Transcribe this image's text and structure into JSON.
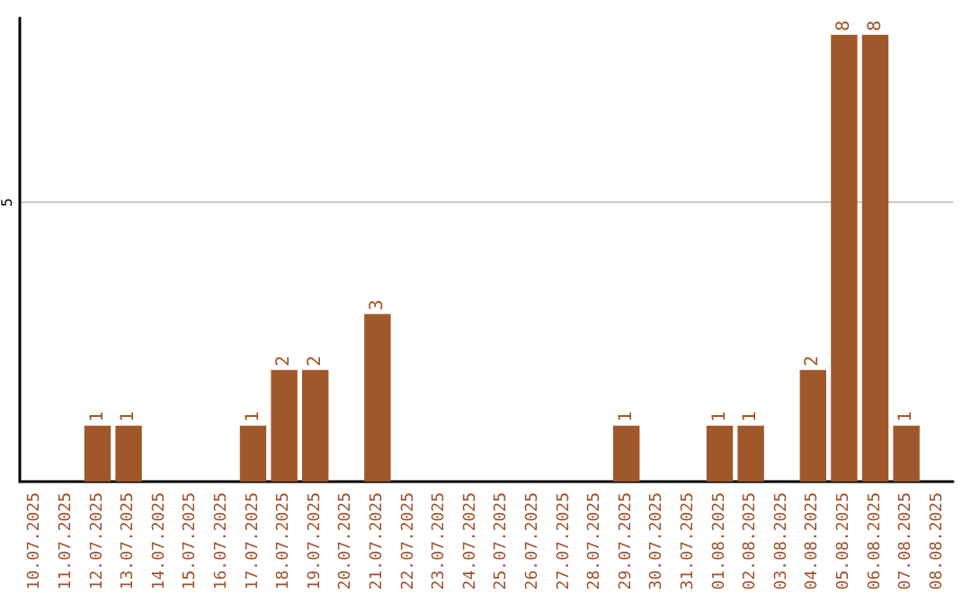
{
  "chart_data": {
    "type": "bar",
    "categories": [
      "10.07.2025",
      "11.07.2025",
      "12.07.2025",
      "13.07.2025",
      "14.07.2025",
      "15.07.2025",
      "16.07.2025",
      "17.07.2025",
      "18.07.2025",
      "19.07.2025",
      "20.07.2025",
      "21.07.2025",
      "22.07.2025",
      "23.07.2025",
      "24.07.2025",
      "25.07.2025",
      "26.07.2025",
      "27.07.2025",
      "28.07.2025",
      "29.07.2025",
      "30.07.2025",
      "31.07.2025",
      "01.08.2025",
      "02.08.2025",
      "03.08.2025",
      "04.08.2025",
      "05.08.2025",
      "06.08.2025",
      "07.08.2025",
      "08.08.2025"
    ],
    "values": [
      0,
      0,
      1,
      1,
      0,
      0,
      0,
      1,
      2,
      2,
      0,
      3,
      0,
      0,
      0,
      0,
      0,
      0,
      0,
      1,
      0,
      0,
      1,
      1,
      0,
      2,
      8,
      8,
      1,
      0
    ],
    "value_labels": [
      null,
      null,
      "1",
      "1",
      null,
      null,
      null,
      "1",
      "2",
      "2",
      null,
      "3",
      null,
      null,
      null,
      null,
      null,
      null,
      null,
      "1",
      null,
      null,
      "1",
      "1",
      null,
      "2",
      "8",
      "8",
      "1",
      null
    ],
    "color": "#a0582a",
    "ylim": [
      0,
      8.3
    ],
    "yticks": [
      5
    ],
    "grid": "y"
  }
}
